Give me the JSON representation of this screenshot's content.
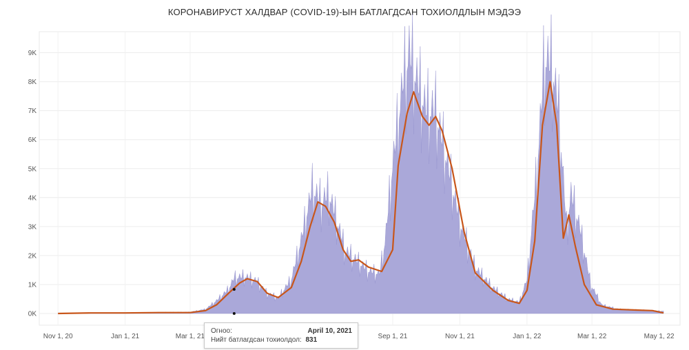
{
  "title": "КОРОНАВИРУСТ ХАЛДВАР (COVID-19)-ЫН БАТЛАГДСАН ТОХИОЛДЛЫН МЭДЭЭ",
  "tooltip": {
    "date_label": "Огноо:",
    "date_value": "April 10, 2021",
    "cases_label": "Нийт батлагдсан тохиолдол:",
    "cases_value": "831"
  },
  "chart_data": {
    "type": "area",
    "x_range": [
      "2020-10-15",
      "2022-05-20"
    ],
    "ylim": [
      0,
      9300
    ],
    "grid": true,
    "x_ticks": [
      {
        "date": "2020-11-01",
        "label": "Nov 1, 20"
      },
      {
        "date": "2021-01-01",
        "label": "Jan 1, 21"
      },
      {
        "date": "2021-03-01",
        "label": "Mar 1, 21"
      },
      {
        "date": "2021-09-01",
        "label": "Sep 1, 21"
      },
      {
        "date": "2021-11-01",
        "label": "Nov 1, 21"
      },
      {
        "date": "2022-01-01",
        "label": "Jan 1, 22"
      },
      {
        "date": "2022-03-01",
        "label": "Mar 1, 22"
      },
      {
        "date": "2022-05-01",
        "label": "May 1, 22"
      }
    ],
    "y_ticks": [
      {
        "value": 0,
        "label": "0K"
      },
      {
        "value": 1000,
        "label": "1K"
      },
      {
        "value": 2000,
        "label": "2K"
      },
      {
        "value": 3000,
        "label": "3K"
      },
      {
        "value": 4000,
        "label": "4K"
      },
      {
        "value": 5000,
        "label": "5K"
      },
      {
        "value": 6000,
        "label": "6K"
      },
      {
        "value": 7000,
        "label": "7K"
      },
      {
        "value": 8000,
        "label": "8K"
      },
      {
        "value": 9000,
        "label": "9K"
      }
    ],
    "series": [
      {
        "type": "area",
        "color": "#aaa8d9",
        "points": [
          [
            "2020-11-01",
            0
          ],
          [
            "2020-12-01",
            20
          ],
          [
            "2021-01-01",
            30
          ],
          [
            "2021-02-01",
            40
          ],
          [
            "2021-03-01",
            50
          ],
          [
            "2021-03-15",
            150
          ],
          [
            "2021-03-25",
            450
          ],
          [
            "2021-04-05",
            850
          ],
          [
            "2021-04-10",
            1250
          ],
          [
            "2021-04-20",
            1300
          ],
          [
            "2021-04-30",
            1150
          ],
          [
            "2021-05-10",
            700
          ],
          [
            "2021-05-20",
            550
          ],
          [
            "2021-06-01",
            1200
          ],
          [
            "2021-06-10",
            2600
          ],
          [
            "2021-06-20",
            4400
          ],
          [
            "2021-06-28",
            3900
          ],
          [
            "2021-07-05",
            4200
          ],
          [
            "2021-07-12",
            3300
          ],
          [
            "2021-07-20",
            2200
          ],
          [
            "2021-08-01",
            1800
          ],
          [
            "2021-08-10",
            1500
          ],
          [
            "2021-08-20",
            1400
          ],
          [
            "2021-08-25",
            2500
          ],
          [
            "2021-09-01",
            5200
          ],
          [
            "2021-09-10",
            8000
          ],
          [
            "2021-09-16",
            9200
          ],
          [
            "2021-09-22",
            8300
          ],
          [
            "2021-10-01",
            7200
          ],
          [
            "2021-10-10",
            7100
          ],
          [
            "2021-10-20",
            5400
          ],
          [
            "2021-11-01",
            3200
          ],
          [
            "2021-11-15",
            1600
          ],
          [
            "2021-12-01",
            900
          ],
          [
            "2021-12-15",
            500
          ],
          [
            "2021-12-25",
            400
          ],
          [
            "2022-01-01",
            1200
          ],
          [
            "2022-01-10",
            5000
          ],
          [
            "2022-01-17",
            9000
          ],
          [
            "2022-01-24",
            8700
          ],
          [
            "2022-01-30",
            7000
          ],
          [
            "2022-02-06",
            3000
          ],
          [
            "2022-02-10",
            4200
          ],
          [
            "2022-02-18",
            3000
          ],
          [
            "2022-02-28",
            1000
          ],
          [
            "2022-03-10",
            300
          ],
          [
            "2022-03-25",
            150
          ],
          [
            "2022-04-15",
            120
          ],
          [
            "2022-05-05",
            80
          ]
        ]
      },
      {
        "type": "line",
        "color": "#c8561a",
        "points": [
          [
            "2020-11-01",
            0
          ],
          [
            "2020-12-01",
            20
          ],
          [
            "2021-01-01",
            20
          ],
          [
            "2021-02-01",
            30
          ],
          [
            "2021-03-01",
            30
          ],
          [
            "2021-03-15",
            100
          ],
          [
            "2021-03-25",
            300
          ],
          [
            "2021-04-05",
            700
          ],
          [
            "2021-04-15",
            1050
          ],
          [
            "2021-04-22",
            1200
          ],
          [
            "2021-05-01",
            1100
          ],
          [
            "2021-05-10",
            700
          ],
          [
            "2021-05-20",
            550
          ],
          [
            "2021-06-01",
            900
          ],
          [
            "2021-06-10",
            1800
          ],
          [
            "2021-06-18",
            3000
          ],
          [
            "2021-06-25",
            3850
          ],
          [
            "2021-07-02",
            3700
          ],
          [
            "2021-07-10",
            3150
          ],
          [
            "2021-07-18",
            2200
          ],
          [
            "2021-07-25",
            1800
          ],
          [
            "2021-08-01",
            1850
          ],
          [
            "2021-08-10",
            1600
          ],
          [
            "2021-08-22",
            1450
          ],
          [
            "2021-09-01",
            2200
          ],
          [
            "2021-09-06",
            5100
          ],
          [
            "2021-09-14",
            6900
          ],
          [
            "2021-09-20",
            7650
          ],
          [
            "2021-09-28",
            6800
          ],
          [
            "2021-10-04",
            6500
          ],
          [
            "2021-10-10",
            6800
          ],
          [
            "2021-10-16",
            6300
          ],
          [
            "2021-10-25",
            5000
          ],
          [
            "2021-11-05",
            2800
          ],
          [
            "2021-11-15",
            1400
          ],
          [
            "2021-12-01",
            800
          ],
          [
            "2021-12-15",
            450
          ],
          [
            "2021-12-25",
            350
          ],
          [
            "2022-01-01",
            800
          ],
          [
            "2022-01-08",
            2500
          ],
          [
            "2022-01-15",
            6500
          ],
          [
            "2022-01-22",
            8000
          ],
          [
            "2022-01-28",
            6500
          ],
          [
            "2022-02-03",
            2600
          ],
          [
            "2022-02-08",
            3400
          ],
          [
            "2022-02-14",
            2300
          ],
          [
            "2022-02-22",
            1000
          ],
          [
            "2022-03-05",
            300
          ],
          [
            "2022-03-20",
            150
          ],
          [
            "2022-04-10",
            120
          ],
          [
            "2022-04-25",
            100
          ],
          [
            "2022-05-05",
            20
          ]
        ]
      }
    ],
    "highlight": {
      "date": "2021-04-10",
      "values": [
        831,
        0
      ]
    }
  }
}
